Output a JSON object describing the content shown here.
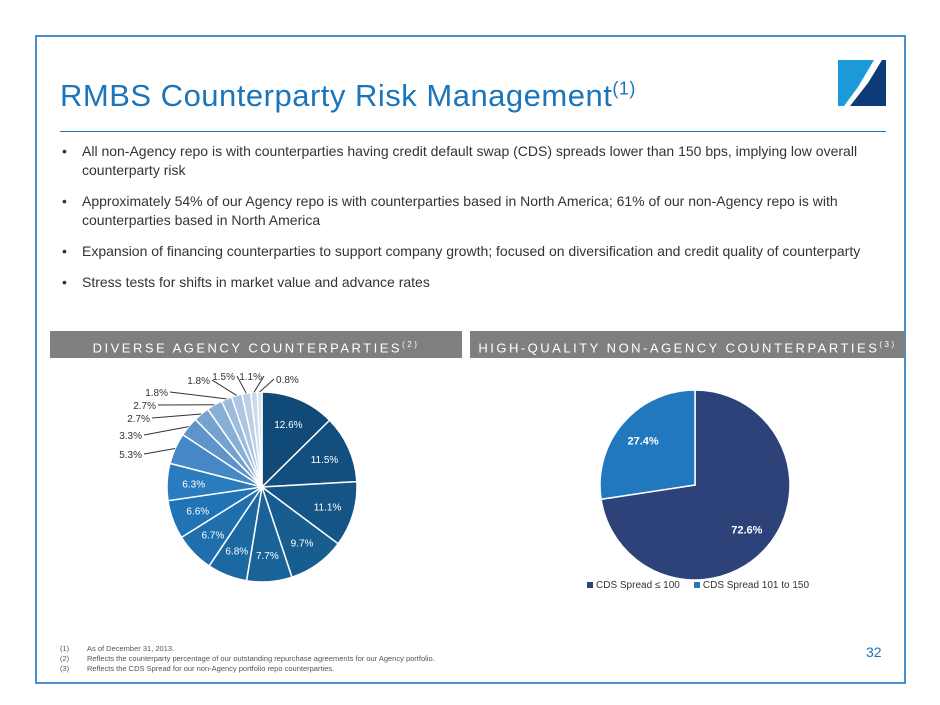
{
  "title": "RMBS Counterparty Risk Management",
  "title_sup": "(1)",
  "bullets": [
    "All non-Agency repo is with counterparties having credit default swap (CDS) spreads lower than 150 bps, implying low overall counterparty risk",
    "Approximately 54% of our Agency repo is with counterparties based in North America; 61% of our non-Agency repo is with counterparties based in North America",
    "Expansion of financing counterparties to support company growth; focused on diversification and credit quality of counterparty",
    "Stress tests for shifts in market value and advance rates"
  ],
  "headers": {
    "left": "DIVERSE AGENCY COUNTERPARTIES",
    "left_sup": "(2)",
    "right": "HIGH-QUALITY NON-AGENCY COUNTERPARTIES",
    "right_sup": "(3)"
  },
  "chart_data": [
    {
      "type": "pie",
      "title": "DIVERSE AGENCY COUNTERPARTIES",
      "values": [
        12.6,
        11.5,
        11.1,
        9.7,
        7.7,
        6.8,
        6.7,
        6.6,
        6.3,
        5.3,
        3.3,
        2.7,
        2.7,
        1.8,
        1.8,
        1.5,
        1.1,
        0.8
      ],
      "labels": [
        "12.6%",
        "11.5%",
        "11.1%",
        "9.7%",
        "7.7%",
        "6.8%",
        "6.7%",
        "6.6%",
        "6.3%",
        "5.3%",
        "3.3%",
        "2.7%",
        "2.7%",
        "1.8%",
        "1.8%",
        "1.5%",
        "1.1%",
        "0.8%"
      ],
      "colors": [
        "#0f4a78",
        "#124f7f",
        "#145586",
        "#175d8f",
        "#1a6399",
        "#1c69a2",
        "#1e6fac",
        "#2074b5",
        "#2a7cbf",
        "#4588c5",
        "#5e94c9",
        "#76a2cf",
        "#8aafd5",
        "#9dbcdb",
        "#adc6e1",
        "#bccfe6",
        "#cbd9ec",
        "#d9e3f1"
      ]
    },
    {
      "type": "pie",
      "title": "HIGH-QUALITY NON-AGENCY COUNTERPARTIES",
      "values": [
        72.6,
        27.4
      ],
      "labels": [
        "72.6%",
        "27.4%"
      ],
      "series_names": [
        "CDS Spread ≤ 100",
        "CDS Spread 101 to 150"
      ],
      "colors": [
        "#2c4279",
        "#2278be"
      ],
      "legend": "bottom"
    }
  ],
  "footnotes": [
    {
      "n": "(1)",
      "t": "As of December 31, 2013."
    },
    {
      "n": "(2)",
      "t": "Reflects the counterparty percentage of our outstanding repurchase agreements for our Agency portfolio."
    },
    {
      "n": "(3)",
      "t": "Reflects the CDS Spread for our non-Agency portfolio repo counterparties."
    }
  ],
  "page_number": "32"
}
